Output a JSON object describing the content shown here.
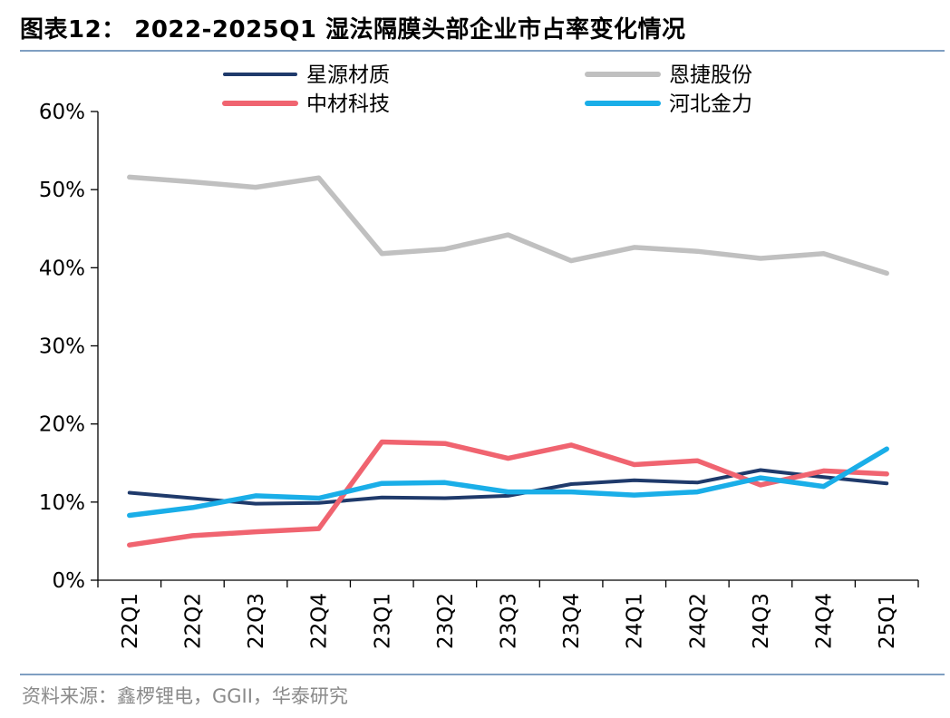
{
  "header": {
    "title": "图表12：  2022-2025Q1 湿法隔膜头部企业市占率变化情况"
  },
  "footer": {
    "source": "资料来源：鑫椤锂电，GGII，华泰研究"
  },
  "chart_data": {
    "type": "line",
    "title": "图表12：  2022-2025Q1 湿法隔膜头部企业市占率变化情况",
    "xlabel": "",
    "ylabel": "",
    "categories": [
      "22Q1",
      "22Q2",
      "22Q3",
      "22Q4",
      "23Q1",
      "23Q2",
      "23Q3",
      "23Q4",
      "24Q1",
      "24Q2",
      "24Q3",
      "24Q4",
      "25Q1"
    ],
    "y_ticks": [
      "0%",
      "10%",
      "20%",
      "30%",
      "40%",
      "50%",
      "60%"
    ],
    "ylim": [
      0,
      60
    ],
    "grid": false,
    "legend_position": "top",
    "series": [
      {
        "name": "星源材质",
        "color": "#1f3a6b",
        "values": [
          11.2,
          10.5,
          9.8,
          9.9,
          10.6,
          10.5,
          10.8,
          12.3,
          12.8,
          12.5,
          14.1,
          13.2,
          12.4
        ]
      },
      {
        "name": "恩捷股份",
        "color": "#c0c0c0",
        "values": [
          51.6,
          51.0,
          50.3,
          51.5,
          41.8,
          42.4,
          44.2,
          40.9,
          42.6,
          42.1,
          41.2,
          41.8,
          39.3
        ]
      },
      {
        "name": "中材科技",
        "color": "#f06470",
        "values": [
          4.5,
          5.7,
          6.2,
          6.6,
          17.7,
          17.5,
          15.6,
          17.3,
          14.8,
          15.3,
          12.2,
          14.0,
          13.6
        ]
      },
      {
        "name": "河北金力",
        "color": "#1aaee8",
        "values": [
          8.3,
          9.3,
          10.8,
          10.5,
          12.4,
          12.5,
          11.3,
          11.3,
          10.9,
          11.3,
          13.1,
          12.0,
          16.8
        ]
      }
    ]
  }
}
